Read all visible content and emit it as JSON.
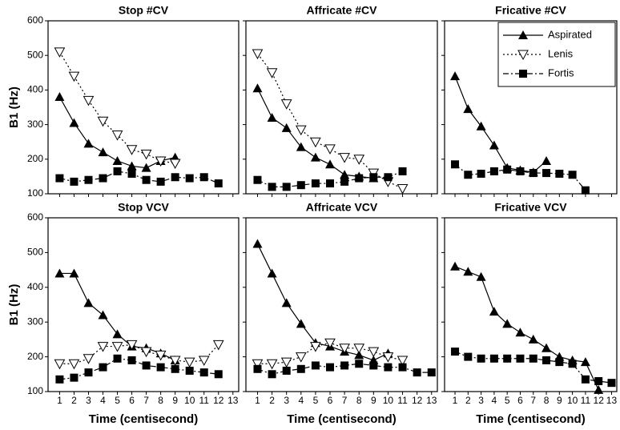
{
  "chart_data": [
    {
      "type": "line",
      "title": "Stop #CV",
      "ylabel": "B1 (Hz)",
      "x": [
        1,
        2,
        3,
        4,
        5,
        6,
        7,
        8,
        9,
        10,
        11,
        12,
        13
      ],
      "xlim": [
        0.2,
        13.4
      ],
      "xticks": [
        1,
        2,
        3,
        4,
        5,
        6,
        7,
        8,
        9,
        10,
        11,
        12,
        13
      ],
      "ylim": [
        100,
        600
      ],
      "yticks": [
        100,
        200,
        300,
        400,
        500,
        600
      ],
      "series": [
        {
          "marker": "triangle",
          "line": "solid",
          "color": "#000",
          "values": [
            380,
            305,
            245,
            220,
            195,
            180,
            175,
            195,
            205,
            null,
            null,
            null,
            null
          ]
        },
        {
          "marker": "triangle-open",
          "line": "dotted",
          "color": "#000",
          "values": [
            510,
            440,
            370,
            310,
            270,
            228,
            215,
            195,
            188,
            null,
            null,
            null,
            null
          ]
        },
        {
          "marker": "square",
          "line": "dashdot",
          "color": "#000",
          "values": [
            145,
            135,
            140,
            145,
            165,
            158,
            140,
            135,
            148,
            145,
            148,
            130,
            null
          ]
        }
      ]
    },
    {
      "type": "line",
      "title": "Affricate #CV",
      "x": [
        1,
        2,
        3,
        4,
        5,
        6,
        7,
        8,
        9,
        10,
        11,
        12,
        13
      ],
      "xlim": [
        0.2,
        13.4
      ],
      "xticks": [
        1,
        2,
        3,
        4,
        5,
        6,
        7,
        8,
        9,
        10,
        11,
        12,
        13
      ],
      "ylim": [
        100,
        600
      ],
      "yticks": [
        100,
        200,
        300,
        400,
        500,
        600
      ],
      "series": [
        {
          "marker": "triangle",
          "line": "solid",
          "color": "#000",
          "values": [
            405,
            320,
            290,
            235,
            205,
            185,
            155,
            150,
            145,
            null,
            null,
            null,
            null
          ]
        },
        {
          "marker": "triangle-open",
          "line": "dotted",
          "color": "#000",
          "values": [
            505,
            450,
            360,
            285,
            250,
            230,
            205,
            200,
            160,
            135,
            115,
            null,
            null
          ]
        },
        {
          "marker": "square",
          "line": "dashdot",
          "color": "#000",
          "values": [
            140,
            120,
            120,
            125,
            130,
            130,
            135,
            145,
            148,
            148,
            165,
            null,
            null
          ]
        }
      ]
    },
    {
      "type": "line",
      "title": "Fricative #CV",
      "x": [
        1,
        2,
        3,
        4,
        5,
        6,
        7,
        8,
        9,
        10,
        11,
        12,
        13
      ],
      "xlim": [
        0.2,
        13.4
      ],
      "xticks": [
        1,
        2,
        3,
        4,
        5,
        6,
        7,
        8,
        9,
        10,
        11,
        12,
        13
      ],
      "ylim": [
        100,
        600
      ],
      "yticks": [
        100,
        200,
        300,
        400,
        500,
        600
      ],
      "legend": {
        "position": "upper right",
        "entries": [
          {
            "name": "Aspirated",
            "marker": "triangle",
            "line": "solid"
          },
          {
            "name": "Lenis",
            "marker": "triangle-open",
            "line": "dotted"
          },
          {
            "name": "Fortis",
            "marker": "square",
            "line": "dashdot"
          }
        ]
      },
      "series": [
        {
          "marker": "triangle",
          "line": "solid",
          "color": "#000",
          "values": [
            440,
            345,
            295,
            240,
            175,
            168,
            162,
            195,
            null,
            null,
            null,
            null,
            null
          ]
        },
        {
          "marker": "square",
          "line": "dashdot",
          "color": "#000",
          "values": [
            185,
            155,
            158,
            165,
            170,
            165,
            160,
            160,
            158,
            155,
            110,
            null,
            null
          ]
        }
      ]
    },
    {
      "type": "line",
      "title": "Stop VCV",
      "ylabel": "B1 (Hz)",
      "xlabel": "Time (centisecond)",
      "x": [
        1,
        2,
        3,
        4,
        5,
        6,
        7,
        8,
        9,
        10,
        11,
        12,
        13
      ],
      "xlim": [
        0.2,
        13.4
      ],
      "xticks": [
        1,
        2,
        3,
        4,
        5,
        6,
        7,
        8,
        9,
        10,
        11,
        12,
        13
      ],
      "ylim": [
        100,
        600
      ],
      "yticks": [
        100,
        200,
        300,
        400,
        500,
        600
      ],
      "series": [
        {
          "marker": "triangle",
          "line": "solid",
          "color": "#000",
          "values": [
            440,
            440,
            355,
            320,
            265,
            230,
            225,
            210,
            190,
            null,
            null,
            null,
            null
          ]
        },
        {
          "marker": "triangle-open",
          "line": "dotted",
          "color": "#000",
          "values": [
            180,
            180,
            195,
            230,
            230,
            235,
            215,
            205,
            190,
            185,
            190,
            235,
            null
          ]
        },
        {
          "marker": "square",
          "line": "dashdot",
          "color": "#000",
          "values": [
            135,
            140,
            155,
            170,
            195,
            190,
            175,
            170,
            165,
            160,
            155,
            150,
            null
          ]
        }
      ]
    },
    {
      "type": "line",
      "title": "Affricate VCV",
      "xlabel": "Time (centisecond)",
      "x": [
        1,
        2,
        3,
        4,
        5,
        6,
        7,
        8,
        9,
        10,
        11,
        12,
        13
      ],
      "xlim": [
        0.2,
        13.4
      ],
      "xticks": [
        1,
        2,
        3,
        4,
        5,
        6,
        7,
        8,
        9,
        10,
        11,
        12,
        13
      ],
      "ylim": [
        100,
        600
      ],
      "yticks": [
        100,
        200,
        300,
        400,
        500,
        600
      ],
      "series": [
        {
          "marker": "triangle",
          "line": "solid",
          "color": "#000",
          "values": [
            525,
            440,
            355,
            295,
            240,
            230,
            215,
            205,
            190,
            210,
            null,
            null,
            null
          ]
        },
        {
          "marker": "triangle-open",
          "line": "dotted",
          "color": "#000",
          "values": [
            180,
            180,
            185,
            200,
            230,
            240,
            225,
            225,
            215,
            200,
            190,
            null,
            null
          ]
        },
        {
          "marker": "square",
          "line": "dashdot",
          "color": "#000",
          "values": [
            165,
            150,
            160,
            165,
            175,
            170,
            175,
            180,
            175,
            170,
            170,
            155,
            155
          ]
        }
      ]
    },
    {
      "type": "line",
      "title": "Fricative VCV",
      "xlabel": "Time (centisecond)",
      "x": [
        1,
        2,
        3,
        4,
        5,
        6,
        7,
        8,
        9,
        10,
        11,
        12,
        13
      ],
      "xlim": [
        0.2,
        13.4
      ],
      "xticks": [
        1,
        2,
        3,
        4,
        5,
        6,
        7,
        8,
        9,
        10,
        11,
        12,
        13
      ],
      "ylim": [
        100,
        600
      ],
      "yticks": [
        100,
        200,
        300,
        400,
        500,
        600
      ],
      "series": [
        {
          "marker": "triangle",
          "line": "solid",
          "color": "#000",
          "values": [
            460,
            445,
            430,
            330,
            295,
            270,
            250,
            225,
            200,
            190,
            185,
            105,
            null
          ]
        },
        {
          "marker": "square",
          "line": "dashdot",
          "color": "#000",
          "values": [
            215,
            200,
            195,
            195,
            195,
            195,
            195,
            190,
            185,
            180,
            135,
            130,
            125
          ]
        }
      ]
    }
  ]
}
